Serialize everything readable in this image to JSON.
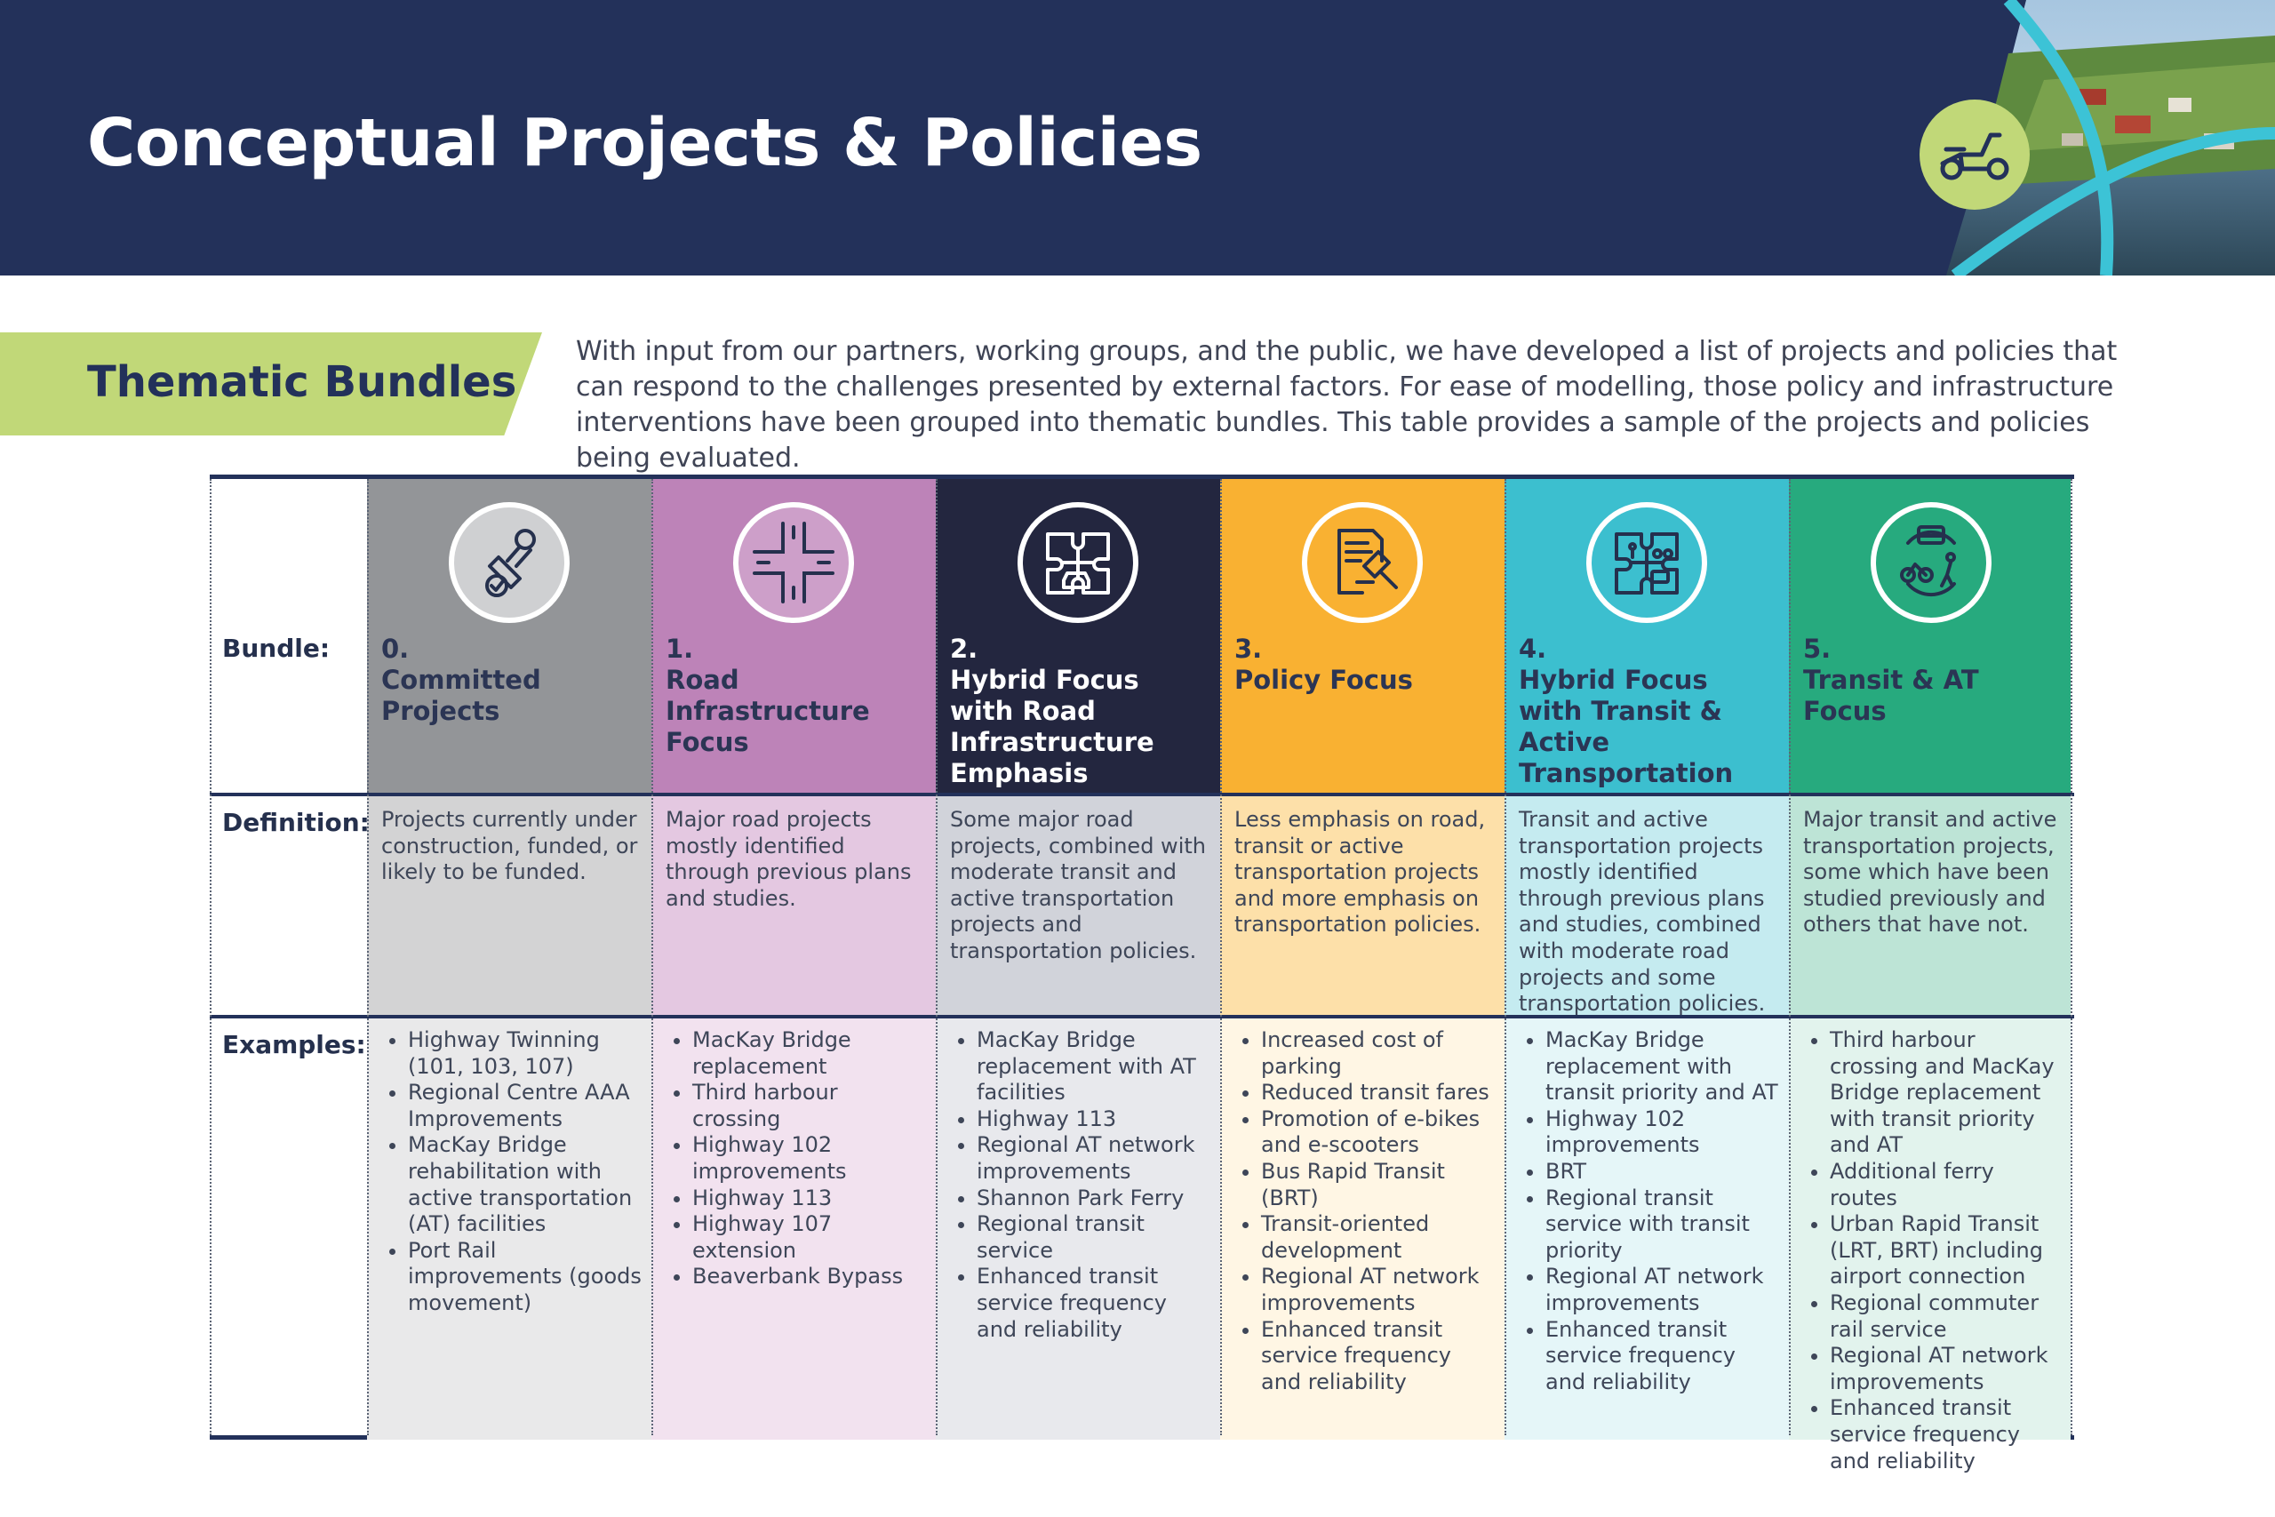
{
  "header": {
    "title": "Conceptual Projects & Policies"
  },
  "section": {
    "tag": "Thematic Bundles",
    "intro": "With input from our partners, working groups, and the public, we have developed a list of projects and policies that can respond to the challenges presented by external factors. For ease of modelling, those policy and infrastructure interventions have been grouped into thematic bundles. This table provides a sample of the projects and policies being evaluated."
  },
  "table": {
    "row_labels": {
      "bundle": "Bundle:",
      "definition": "Definition:",
      "examples": "Examples:"
    },
    "bundles": [
      {
        "number": "0.",
        "name": "Committed Projects",
        "icon": "stamp-approved-icon",
        "color": "#939598",
        "definition_bg": "#d3d3d4",
        "examples_bg": "#e9e9ea",
        "text_color": "#2b3554",
        "definition": "Projects currently under construction, funded, or likely to be funded.",
        "examples": [
          "Highway Twinning (101, 103, 107)",
          "Regional Centre AAA Improvements",
          "MacKay Bridge rehabilitation with active transportation (AT) facilities",
          "Port Rail improvements (goods movement)"
        ]
      },
      {
        "number": "1.",
        "name": "Road Infrastructure Focus",
        "icon": "road-intersection-icon",
        "color": "#bd83b8",
        "definition_bg": "#e4c8e1",
        "examples_bg": "#f2e2ef",
        "text_color": "#2b3554",
        "definition": "Major road projects mostly identified through previous plans and studies.",
        "examples": [
          "MacKay Bridge replacement",
          "Third harbour crossing",
          "Highway 102 improvements",
          "Highway 113",
          "Highway 107 extension",
          "Beaverbank Bypass"
        ]
      },
      {
        "number": "2.",
        "name": "Hybrid Focus with Road Infrastructure Emphasis",
        "icon": "puzzle-car-icon",
        "color": "#23263f",
        "definition_bg": "#d1d3da",
        "examples_bg": "#e8e9ed",
        "text_color": "#ffffff",
        "definition": "Some major road projects, combined with moderate transit and active transportation projects and transportation policies.",
        "examples": [
          "MacKay Bridge replacement with AT facilities",
          "Highway 113",
          "Regional AT network improvements",
          "Shannon Park Ferry",
          "Regional transit service",
          "Enhanced transit service frequency and reliability"
        ]
      },
      {
        "number": "3.",
        "name": "Policy Focus",
        "icon": "policy-document-icon",
        "color": "#f9b132",
        "definition_bg": "#fde0a9",
        "examples_bg": "#fff6e4",
        "text_color": "#2b3554",
        "definition": "Less emphasis on road, transit or active transportation projects and more emphasis on transportation policies.",
        "examples": [
          "Increased cost of parking",
          "Reduced transit fares",
          "Promotion of e-bikes and e-scooters",
          "Bus Rapid Transit (BRT)",
          "Transit-oriented development",
          "Regional AT network improvements",
          "Enhanced transit service frequency and reliability"
        ]
      },
      {
        "number": "4.",
        "name": "Hybrid Focus with Transit & Active Transportation (AT) Emphasis",
        "icon": "puzzle-transit-icon",
        "color": "#3cbfcf",
        "definition_bg": "#c5ebf0",
        "examples_bg": "#e5f6f8",
        "text_color": "#2b3554",
        "definition": "Transit and active transportation projects mostly identified through previous plans and studies, combined with moderate road projects and some transportation policies.",
        "examples": [
          "MacKay Bridge replacement with transit priority and AT",
          "Highway 102 improvements",
          "BRT",
          "Regional transit service with transit priority",
          "Regional AT network improvements",
          "Enhanced transit service frequency and reliability"
        ]
      },
      {
        "number": "5.",
        "name": "Transit & AT Focus",
        "icon": "bus-bike-walk-icon",
        "color": "#27aa7e",
        "definition_bg": "#bde4d6",
        "examples_bg": "#e2f3ed",
        "text_color": "#2b3554",
        "definition": "Major transit and active transportation projects, some which have been studied previously and others that have not.",
        "examples": [
          "Third harbour crossing and MacKay Bridge replacement with transit priority and AT",
          "Additional ferry routes",
          "Urban Rapid Transit (LRT, BRT) including airport connection",
          "Regional commuter rail service",
          "Regional AT network improvements",
          "Enhanced transit service frequency and reliability"
        ]
      }
    ]
  },
  "colors": {
    "navy": "#23315a",
    "lime": "#c1d878",
    "teal_accent": "#3cc3d6"
  }
}
